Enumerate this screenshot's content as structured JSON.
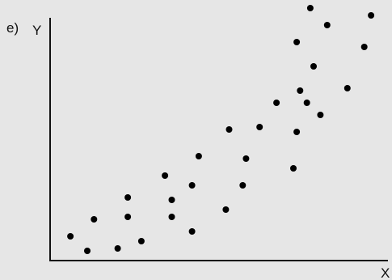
{
  "panel_label": "e)",
  "colors": {
    "background": "#e6e6e6",
    "axis": "#111111",
    "point": "#000000"
  },
  "chart_data": {
    "type": "scatter",
    "title": "",
    "xlabel": "X",
    "ylabel": "Y",
    "xlim": [
      0,
      100
    ],
    "ylim": [
      0,
      100
    ],
    "grid": false,
    "axis_ticks": false,
    "points": [
      {
        "x": 6,
        "y": 10
      },
      {
        "x": 11,
        "y": 4
      },
      {
        "x": 13,
        "y": 17
      },
      {
        "x": 20,
        "y": 5
      },
      {
        "x": 23,
        "y": 26
      },
      {
        "x": 23,
        "y": 18
      },
      {
        "x": 27,
        "y": 8
      },
      {
        "x": 34,
        "y": 35
      },
      {
        "x": 36,
        "y": 25
      },
      {
        "x": 36,
        "y": 18
      },
      {
        "x": 42,
        "y": 31
      },
      {
        "x": 42,
        "y": 12
      },
      {
        "x": 44,
        "y": 43
      },
      {
        "x": 52,
        "y": 21
      },
      {
        "x": 53,
        "y": 54
      },
      {
        "x": 57,
        "y": 31
      },
      {
        "x": 58,
        "y": 42
      },
      {
        "x": 62,
        "y": 55
      },
      {
        "x": 67,
        "y": 65
      },
      {
        "x": 72,
        "y": 38
      },
      {
        "x": 73,
        "y": 53
      },
      {
        "x": 73,
        "y": 90
      },
      {
        "x": 74,
        "y": 70
      },
      {
        "x": 76,
        "y": 65
      },
      {
        "x": 77,
        "y": 104
      },
      {
        "x": 78,
        "y": 80
      },
      {
        "x": 80,
        "y": 60
      },
      {
        "x": 82,
        "y": 97
      },
      {
        "x": 88,
        "y": 71
      },
      {
        "x": 93,
        "y": 88
      },
      {
        "x": 95,
        "y": 101
      }
    ]
  }
}
